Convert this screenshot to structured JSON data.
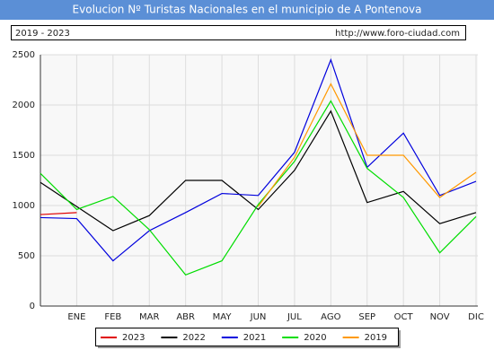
{
  "chart_data": {
    "type": "line",
    "title": "Evolucion Nº Turistas Nacionales en el municipio de A Pontenova",
    "subtitle": "2019 - 2023",
    "source": "http://www.foro-ciudad.com",
    "categories": [
      null,
      "ENE",
      "FEB",
      "MAR",
      "ABR",
      "MAY",
      "JUN",
      "JUL",
      "AGO",
      "SEP",
      "OCT",
      "NOV",
      "DIC"
    ],
    "series": [
      {
        "name": "2023",
        "color": "#e00000",
        "values": [
          910,
          930,
          null,
          null,
          null,
          null,
          null,
          null,
          null,
          null,
          null,
          null,
          null
        ]
      },
      {
        "name": "2022",
        "color": "#000000",
        "values": [
          1230,
          990,
          750,
          900,
          1250,
          1250,
          960,
          1350,
          1940,
          1030,
          1140,
          820,
          930
        ]
      },
      {
        "name": "2021",
        "color": "#0000dd",
        "values": [
          880,
          870,
          450,
          750,
          930,
          1120,
          1100,
          1530,
          2450,
          1380,
          1720,
          1100,
          1240
        ]
      },
      {
        "name": "2020",
        "color": "#00dd00",
        "values": [
          1320,
          960,
          1090,
          760,
          310,
          450,
          1010,
          1440,
          2040,
          1370,
          1080,
          530,
          890
        ]
      },
      {
        "name": "2019",
        "color": "#ff9900",
        "values": [
          null,
          null,
          null,
          null,
          null,
          null,
          990,
          1480,
          2210,
          1500,
          1500,
          1080,
          1330
        ]
      }
    ],
    "ylim": [
      0,
      2500
    ],
    "yticks": [
      0,
      500,
      1000,
      1500,
      2000,
      2500
    ],
    "grid": true,
    "legend": "bottom"
  }
}
